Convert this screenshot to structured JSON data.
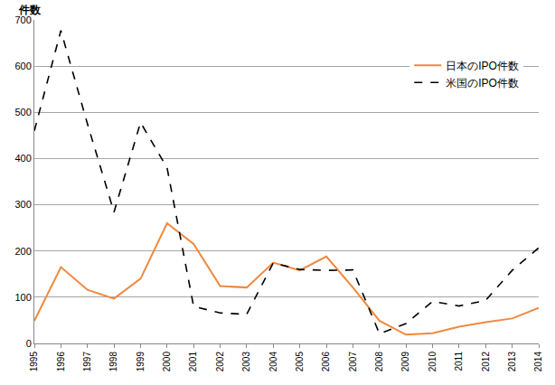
{
  "chart_data": {
    "type": "line",
    "y_label": "件数",
    "categories": [
      "1995",
      "1996",
      "1997",
      "1998",
      "1999",
      "2000",
      "2001",
      "2002",
      "2003",
      "2004",
      "2005",
      "2006",
      "2007",
      "2008",
      "2009",
      "2010",
      "2011",
      "2012",
      "2013",
      "2014"
    ],
    "series": [
      {
        "name": "日本のIPO件数",
        "color": "#f0883e",
        "line_style": "solid",
        "values": [
          49,
          165,
          116,
          97,
          140,
          260,
          215,
          124,
          121,
          175,
          158,
          188,
          121,
          49,
          19,
          22,
          36,
          46,
          54,
          77
        ]
      },
      {
        "name": "米国のIPO件数",
        "color": "#000000",
        "line_style": "dash",
        "values": [
          460,
          677,
          475,
          284,
          478,
          380,
          80,
          66,
          63,
          174,
          160,
          158,
          159,
          21,
          43,
          91,
          81,
          93,
          158,
          207
        ]
      }
    ],
    "ylim": [
      0,
      700
    ],
    "yticks": [
      0,
      100,
      200,
      300,
      400,
      500,
      600,
      700
    ],
    "grid": true,
    "legend": "upper right"
  }
}
